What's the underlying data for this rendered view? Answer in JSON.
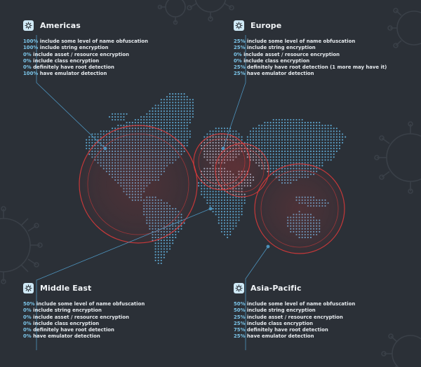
{
  "colors": {
    "background": "#2b3037",
    "map_dots": "#5fa9d3",
    "highlight_circle": "#e23a3a",
    "accent": "#7cc6ea",
    "badge": "#cfe9f6"
  },
  "icons": {
    "region_badge": "virus-icon"
  },
  "regions": [
    {
      "name": "Americas",
      "stats": [
        {
          "pct": "100%",
          "text": "include some level of name obfuscation"
        },
        {
          "pct": "100%",
          "text": "include string encryption"
        },
        {
          "pct": "0%",
          "text": "include asset / resource encryption"
        },
        {
          "pct": "0%",
          "text": "include class encryption"
        },
        {
          "pct": "0%",
          "text": "definitely have root detection"
        },
        {
          "pct": "100%",
          "text": "have emulator detection"
        }
      ]
    },
    {
      "name": "Europe",
      "stats": [
        {
          "pct": "25%",
          "text": "include some level of name obfuscation"
        },
        {
          "pct": "25%",
          "text": "include string encryption"
        },
        {
          "pct": "0%",
          "text": "include asset / resource encryption"
        },
        {
          "pct": "0%",
          "text": "include class encryption"
        },
        {
          "pct": "25%",
          "text": "definitely have root detection (1 more may have it)"
        },
        {
          "pct": "25%",
          "text": "have emulator detection"
        }
      ]
    },
    {
      "name": "Middle East",
      "stats": [
        {
          "pct": "50%",
          "text": "include some level of name obfuscation"
        },
        {
          "pct": "0%",
          "text": "include string encryption"
        },
        {
          "pct": "0%",
          "text": "include asset / resource encryption"
        },
        {
          "pct": "0%",
          "text": "include class encryption"
        },
        {
          "pct": "0%",
          "text": "definitely have root detection"
        },
        {
          "pct": "0%",
          "text": "have emulator detection"
        }
      ]
    },
    {
      "name": "Asia-Pacific",
      "stats": [
        {
          "pct": "50%",
          "text": "include some level of name obfuscation"
        },
        {
          "pct": "50%",
          "text": "include string encryption"
        },
        {
          "pct": "25%",
          "text": "include asset / resource encryption"
        },
        {
          "pct": "25%",
          "text": "include class encryption"
        },
        {
          "pct": "75%",
          "text": "definitely have root detection"
        },
        {
          "pct": "25%",
          "text": "have emulator detection"
        }
      ]
    }
  ]
}
